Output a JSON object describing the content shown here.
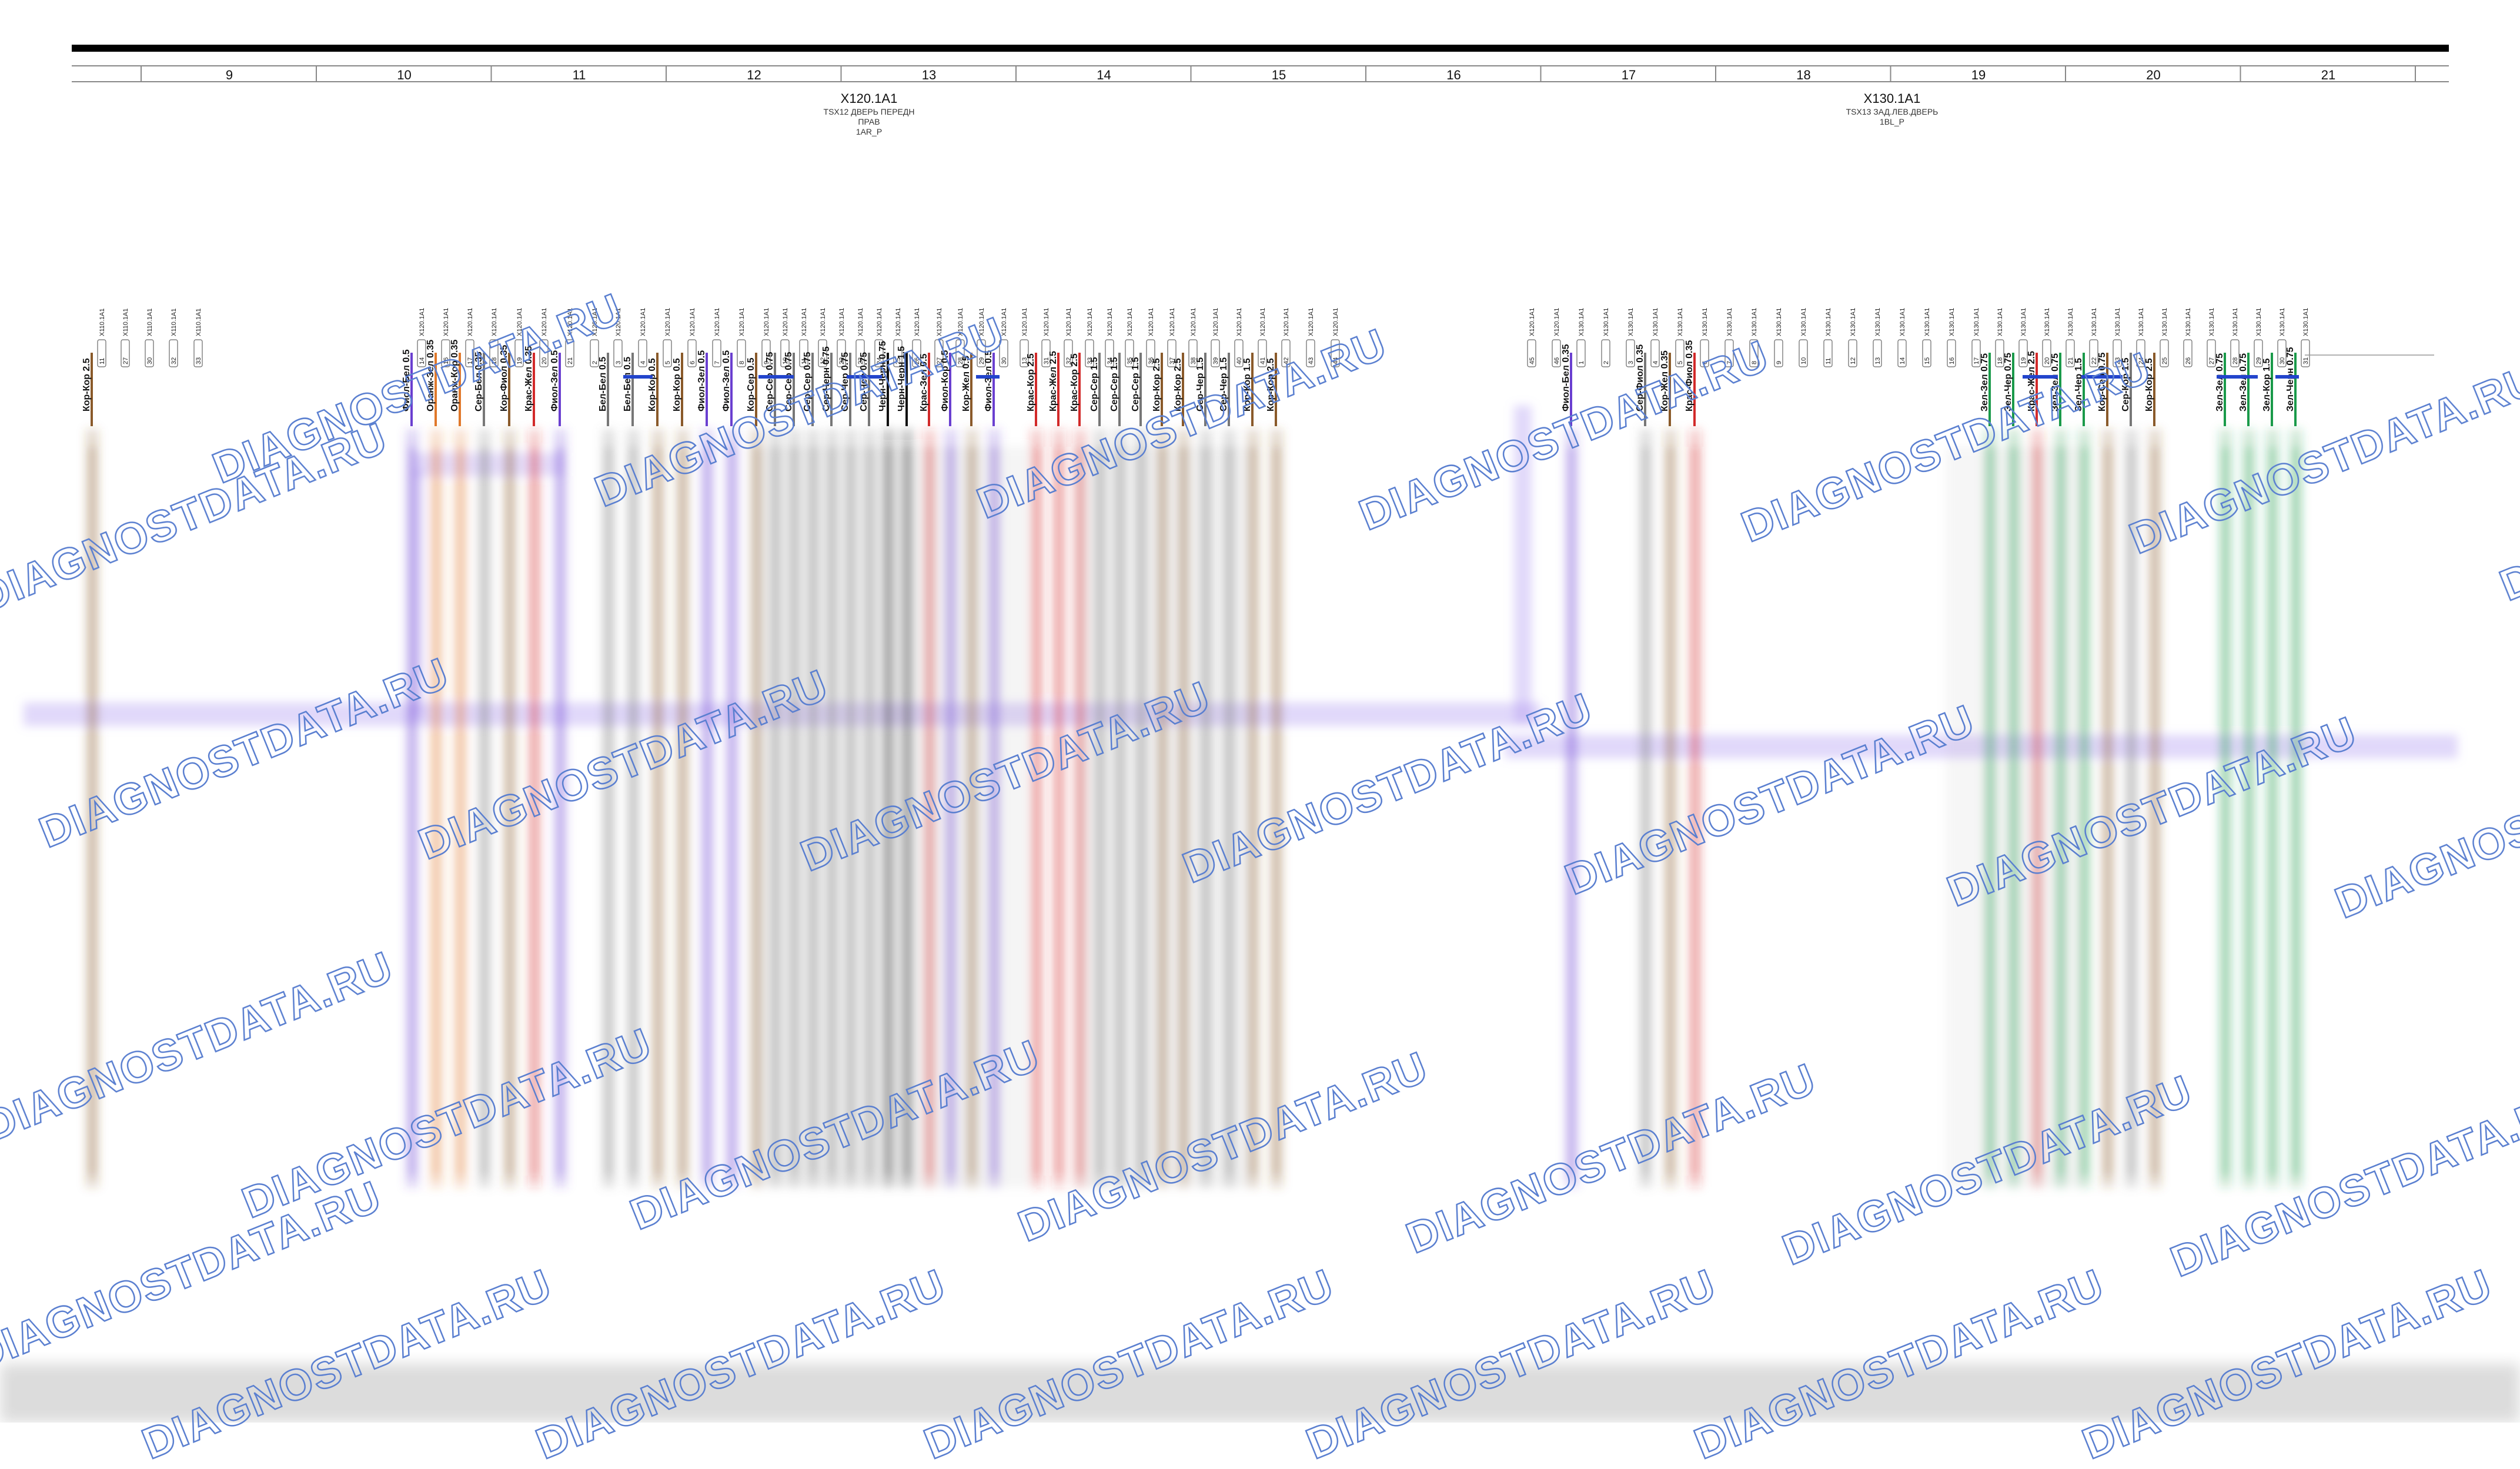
{
  "columns": [
    "9",
    "10",
    "11",
    "12",
    "13",
    "14",
    "15",
    "16",
    "17",
    "18",
    "19",
    "20",
    "21"
  ],
  "connectors": [
    {
      "id": "X120.1A1",
      "lines": [
        "TSX12 ДВЕРЬ ПЕРЕДН",
        "ПРАВ",
        "1AR_P"
      ]
    },
    {
      "id": "X130.1A1",
      "lines": [
        "TSX13 ЗАД.ЛЕВ.ДВЕРЬ",
        "1BL_P"
      ]
    }
  ],
  "watermark": "DIAGNOSTDATA.RU",
  "colors": {
    "orange": "#e0782a",
    "purple": "#6a3fd0",
    "blue": "#2244cc",
    "grey": "#777777",
    "red": "#d22a2a",
    "brown": "#8a5a2a",
    "green": "#1a9a4a",
    "black": "#111111",
    "pink": "#d0509a",
    "light_purple_band": "#a890f0",
    "watermark": "#5a7fd0"
  },
  "wires": [
    {
      "label": "Кор-Кор 2.5",
      "color": "brown",
      "pin": "11",
      "connector": "X110.1A1"
    },
    {
      "label": "",
      "color": "",
      "pin": "27",
      "connector": "X110.1A1"
    },
    {
      "label": "",
      "color": "",
      "pin": "30",
      "connector": "X110.1A1"
    },
    {
      "label": "",
      "color": "",
      "pin": "32",
      "connector": "X110.1A1"
    },
    {
      "label": "",
      "color": "",
      "pin": "33",
      "connector": "X110.1A1"
    },
    {
      "label": "Фиол-Бел 0.5",
      "color": "purple",
      "pin": "14",
      "connector": "X120.1A1"
    },
    {
      "label": "Оранж-Зел 0.35",
      "color": "orange",
      "pin": "16",
      "connector": "X120.1A1"
    },
    {
      "label": "Оранж-Кор 0.35",
      "color": "orange",
      "pin": "17",
      "connector": "X120.1A1"
    },
    {
      "label": "Сер-Бел 0.35",
      "color": "grey",
      "pin": "18",
      "connector": "X120.1A1"
    },
    {
      "label": "Кор-Фиол 0.35",
      "color": "brown",
      "pin": "19",
      "connector": "X120.1A1"
    },
    {
      "label": "Крас-Жел 0.35",
      "color": "red",
      "pin": "20",
      "connector": "X120.1A1"
    },
    {
      "label": "Фиол-Зел 0.5",
      "color": "purple",
      "pin": "21",
      "connector": "X120.1A1"
    },
    {
      "label": "",
      "color": "",
      "pin": "2",
      "connector": "X120.1A1"
    },
    {
      "label": "Бел-Бел 0.5",
      "color": "grey",
      "pin": "3",
      "connector": "X120.1A1"
    },
    {
      "label": "Бел-Бел 0.5",
      "color": "grey",
      "pin": "4",
      "connector": "X120.1A1"
    },
    {
      "label": "Кор-Кор 0.5",
      "color": "brown",
      "pin": "5",
      "connector": "X120.1A1"
    },
    {
      "label": "Кор-Кор 0.5",
      "color": "brown",
      "pin": "6",
      "connector": "X120.1A1"
    },
    {
      "label": "Фиол-Зел 0.5",
      "color": "purple",
      "pin": "7",
      "connector": "X120.1A1"
    },
    {
      "label": "Фиол-Зел 0.5",
      "color": "purple",
      "pin": "8",
      "connector": "X120.1A1"
    },
    {
      "label": "Кор-Сер 0.5",
      "color": "brown",
      "pin": "9",
      "connector": "X120.1A1"
    },
    {
      "label": "Сер-Сер 0.75",
      "color": "grey",
      "pin": "10",
      "connector": "X120.1A1"
    },
    {
      "label": "Сер-Сер 0.75",
      "color": "grey",
      "pin": "11",
      "connector": "X120.1A1"
    },
    {
      "label": "Сер-Сер 0.75",
      "color": "grey",
      "pin": "12",
      "connector": "X120.1A1"
    },
    {
      "label": "Сер-Черн 0.75",
      "color": "grey",
      "pin": "22",
      "connector": "X120.1A1"
    },
    {
      "label": "Сер-Чер 0.75",
      "color": "grey",
      "pin": "23",
      "connector": "X120.1A1"
    },
    {
      "label": "Сер-Чер 0.75",
      "color": "grey",
      "pin": "24",
      "connector": "X120.1A1"
    },
    {
      "label": "Черн-Черн 0.75",
      "color": "black",
      "pin": "25",
      "connector": "X120.1A1"
    },
    {
      "label": "Черн-Черн 1.5",
      "color": "black",
      "pin": "26",
      "connector": "X120.1A1"
    },
    {
      "label": "Крас-Зел 0.5",
      "color": "red",
      "pin": "27",
      "connector": "X120.1A1"
    },
    {
      "label": "Фиол-Кор 0.5",
      "color": "purple",
      "pin": "28",
      "connector": "X120.1A1"
    },
    {
      "label": "Кор-Жел 0.5",
      "color": "brown",
      "pin": "29",
      "connector": "X120.1A1"
    },
    {
      "label": "Фиол-Зел 0.5",
      "color": "purple",
      "pin": "30",
      "connector": "X120.1A1"
    },
    {
      "label": "",
      "color": "",
      "pin": "13",
      "connector": "X120.1A1"
    },
    {
      "label": "Крас-Кор 2.5",
      "color": "red",
      "pin": "31",
      "connector": "X120.1A1"
    },
    {
      "label": "Крас-Жел 2.5",
      "color": "red",
      "pin": "32",
      "connector": "X120.1A1"
    },
    {
      "label": "Крас-Кор 2.5",
      "color": "red",
      "pin": "33",
      "connector": "X120.1A1"
    },
    {
      "label": "Сер-Сер 1.5",
      "color": "grey",
      "pin": "34",
      "connector": "X120.1A1"
    },
    {
      "label": "Сер-Сер 1.5",
      "color": "grey",
      "pin": "35",
      "connector": "X120.1A1"
    },
    {
      "label": "Сер-Сер 1.5",
      "color": "grey",
      "pin": "36",
      "connector": "X120.1A1"
    },
    {
      "label": "Кор-Кор 2.5",
      "color": "brown",
      "pin": "37",
      "connector": "X120.1A1"
    },
    {
      "label": "Кор-Кор 2.5",
      "color": "brown",
      "pin": "38",
      "connector": "X120.1A1"
    },
    {
      "label": "Сер-Чер 1.5",
      "color": "grey",
      "pin": "39",
      "connector": "X120.1A1"
    },
    {
      "label": "Сер-Чер 1.5",
      "color": "grey",
      "pin": "40",
      "connector": "X120.1A1"
    },
    {
      "label": "Кор-Кор 1.5",
      "color": "brown",
      "pin": "41",
      "connector": "X120.1A1"
    },
    {
      "label": "Кор-Кор 2.5",
      "color": "brown",
      "pin": "42",
      "connector": "X120.1A1"
    },
    {
      "label": "",
      "color": "",
      "pin": "43",
      "connector": "X120.1A1"
    },
    {
      "label": "",
      "color": "",
      "pin": "44",
      "connector": "X120.1A1"
    },
    {
      "label": "",
      "color": "",
      "pin": "45",
      "connector": "X120.1A1"
    },
    {
      "label": "",
      "color": "",
      "pin": "46",
      "connector": "X120.1A1"
    },
    {
      "label": "Фиол-Бел 0.35",
      "color": "purple",
      "pin": "1",
      "connector": "X130.1A1"
    },
    {
      "label": "",
      "color": "",
      "pin": "2",
      "connector": "X130.1A1"
    },
    {
      "label": "",
      "color": "",
      "pin": "3",
      "connector": "X130.1A1"
    },
    {
      "label": "Сер-Фиол 0.35",
      "color": "grey",
      "pin": "4",
      "connector": "X130.1A1"
    },
    {
      "label": "Кор-Жел 0.35",
      "color": "brown",
      "pin": "5",
      "connector": "X130.1A1"
    },
    {
      "label": "Крас-Фиол 0.35",
      "color": "red",
      "pin": "6",
      "connector": "X130.1A1"
    },
    {
      "label": "",
      "color": "",
      "pin": "7",
      "connector": "X130.1A1"
    },
    {
      "label": "",
      "color": "",
      "pin": "8",
      "connector": "X130.1A1"
    },
    {
      "label": "",
      "color": "",
      "pin": "9",
      "connector": "X130.1A1"
    },
    {
      "label": "",
      "color": "",
      "pin": "10",
      "connector": "X130.1A1"
    },
    {
      "label": "",
      "color": "",
      "pin": "11",
      "connector": "X130.1A1"
    },
    {
      "label": "",
      "color": "",
      "pin": "12",
      "connector": "X130.1A1"
    },
    {
      "label": "",
      "color": "",
      "pin": "13",
      "connector": "X130.1A1"
    },
    {
      "label": "",
      "color": "",
      "pin": "14",
      "connector": "X130.1A1"
    },
    {
      "label": "",
      "color": "",
      "pin": "15",
      "connector": "X130.1A1"
    },
    {
      "label": "",
      "color": "",
      "pin": "16",
      "connector": "X130.1A1"
    },
    {
      "label": "",
      "color": "",
      "pin": "17",
      "connector": "X130.1A1"
    },
    {
      "label": "Зел-Зел 0.75",
      "color": "green",
      "pin": "18",
      "connector": "X130.1A1"
    },
    {
      "label": "Зел-Чер 0.75",
      "color": "green",
      "pin": "19",
      "connector": "X130.1A1"
    },
    {
      "label": "Крас-Жел 2.5",
      "color": "red",
      "pin": "20",
      "connector": "X130.1A1"
    },
    {
      "label": "Зел-Зел 0.75",
      "color": "green",
      "pin": "21",
      "connector": "X130.1A1"
    },
    {
      "label": "Зел-Чер 1.5",
      "color": "green",
      "pin": "22",
      "connector": "X130.1A1"
    },
    {
      "label": "Кор-Сер 0.75",
      "color": "brown",
      "pin": "23",
      "connector": "X130.1A1"
    },
    {
      "label": "Сер-Кор 1.5",
      "color": "grey",
      "pin": "24",
      "connector": "X130.1A1"
    },
    {
      "label": "Кор-Кор 2.5",
      "color": "brown",
      "pin": "25",
      "connector": "X130.1A1"
    },
    {
      "label": "",
      "color": "",
      "pin": "26",
      "connector": "X130.1A1"
    },
    {
      "label": "",
      "color": "",
      "pin": "27",
      "connector": "X130.1A1"
    },
    {
      "label": "Зел-Зел 0.75",
      "color": "green",
      "pin": "28",
      "connector": "X130.1A1"
    },
    {
      "label": "Зел-Зел 0.75",
      "color": "green",
      "pin": "29",
      "connector": "X130.1A1"
    },
    {
      "label": "Зел-Кор 1.5",
      "color": "green",
      "pin": "30",
      "connector": "X130.1A1"
    },
    {
      "label": "Зел-Черн 0.75",
      "color": "green",
      "pin": "31",
      "connector": "X130.1A1"
    },
    {
      "label": "Зел-Чер 0.75",
      "color": "green",
      "pin": "32",
      "connector": "X130.1A1"
    },
    {
      "label": "Зел-Кор 1.5",
      "color": "green",
      "pin": "33",
      "connector": "X130.1A1"
    }
  ]
}
